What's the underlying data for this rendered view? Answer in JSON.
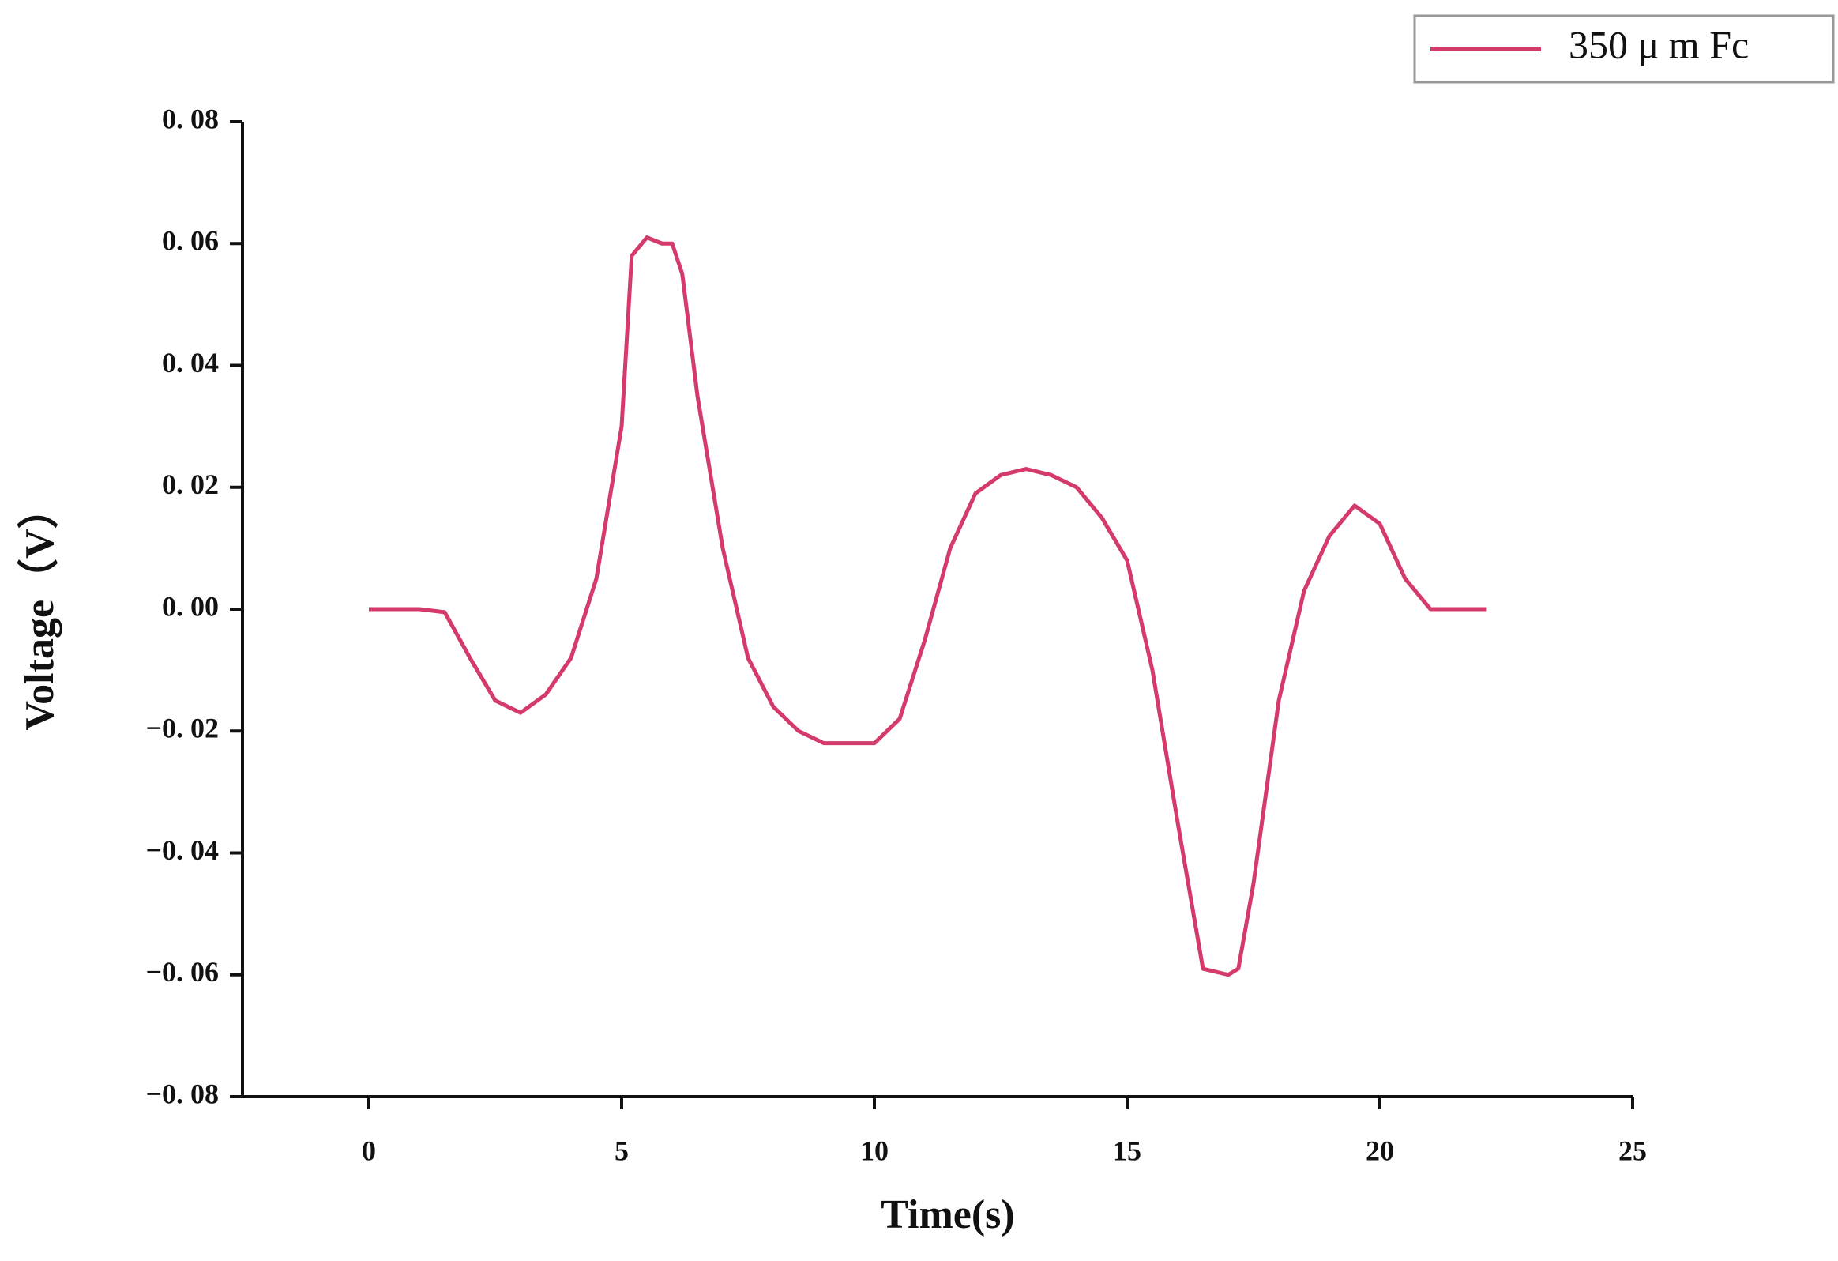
{
  "chart_data": {
    "type": "line",
    "x_label": "Time(s)",
    "y_label": "Voltage（V）",
    "series": [
      {
        "name": "350 μ m Fc",
        "color": "#d43a6a",
        "x": [
          0,
          0.5,
          1,
          1.5,
          2,
          2.5,
          3,
          3.5,
          4,
          4.5,
          5,
          5.2,
          5.5,
          5.8,
          6,
          6.2,
          6.5,
          7,
          7.5,
          8,
          8.5,
          9,
          9.5,
          10,
          10.5,
          11,
          11.5,
          12,
          12.5,
          13,
          13.5,
          14,
          14.5,
          15,
          15.5,
          16,
          16.5,
          17,
          17.2,
          17.5,
          18,
          18.5,
          19,
          19.5,
          20,
          20.5,
          21,
          21.5,
          22,
          22.1
        ],
        "values": [
          0,
          0,
          0,
          -0.0005,
          -0.008,
          -0.015,
          -0.017,
          -0.014,
          -0.008,
          0.005,
          0.03,
          0.058,
          0.061,
          0.06,
          0.06,
          0.055,
          0.035,
          0.01,
          -0.008,
          -0.016,
          -0.02,
          -0.022,
          -0.022,
          -0.022,
          -0.018,
          -0.005,
          0.01,
          0.019,
          0.022,
          0.023,
          0.022,
          0.02,
          0.015,
          0.008,
          -0.01,
          -0.035,
          -0.059,
          -0.06,
          -0.059,
          -0.045,
          -0.015,
          0.003,
          0.012,
          0.017,
          0.014,
          0.005,
          0,
          0,
          0,
          0
        ]
      }
    ],
    "xlim": [
      -2.5,
      25
    ],
    "xticks": [
      0,
      5,
      10,
      15,
      20,
      25
    ],
    "ylim": [
      -0.08,
      0.08
    ],
    "yticks": [
      {
        "value": -0.08,
        "label": "−0. 08"
      },
      {
        "value": -0.06,
        "label": "−0. 06"
      },
      {
        "value": -0.04,
        "label": "−0. 04"
      },
      {
        "value": -0.02,
        "label": "−0. 02"
      },
      {
        "value": 0,
        "label": "0. 00"
      },
      {
        "value": 0.02,
        "label": "0. 02"
      },
      {
        "value": 0.04,
        "label": "0. 04"
      },
      {
        "value": 0.06,
        "label": "0. 06"
      },
      {
        "value": 0.08,
        "label": "0. 08"
      }
    ],
    "legend": "top-right"
  }
}
